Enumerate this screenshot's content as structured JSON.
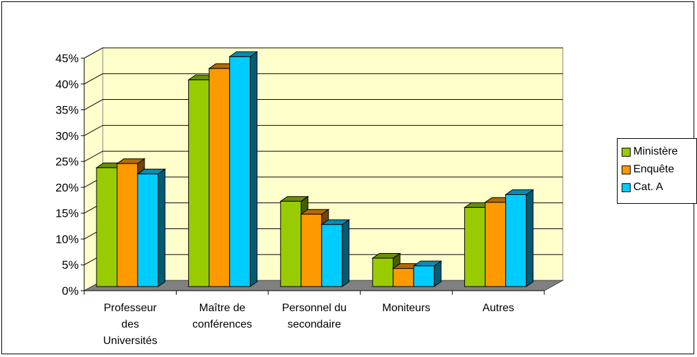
{
  "chart_data": {
    "type": "bar",
    "categories": [
      "Professeur des Universités",
      "Maître de conférences",
      "Personnel du secondaire",
      "Moniteurs",
      "Autres"
    ],
    "category_lines": [
      [
        "Professeur",
        "des",
        "Universités"
      ],
      [
        "Maître de",
        "conférences"
      ],
      [
        "Personnel du",
        "secondaire"
      ],
      [
        "Moniteurs"
      ],
      [
        "Autres"
      ]
    ],
    "series": [
      {
        "name": "Ministère",
        "values": [
          23,
          40,
          16.5,
          5.5,
          15.3
        ],
        "color": "#99cc00"
      },
      {
        "name": "Enquête",
        "values": [
          23.8,
          42.2,
          14,
          3.5,
          16.3
        ],
        "color": "#ff9900"
      },
      {
        "name": "Cat. A",
        "values": [
          21.8,
          44.5,
          12,
          4,
          17.8
        ],
        "color": "#00ccff"
      }
    ],
    "yticks": [
      "0%",
      "5%",
      "10%",
      "15%",
      "20%",
      "25%",
      "30%",
      "35%",
      "40%",
      "45%"
    ],
    "ylim": [
      0,
      45
    ],
    "title": "",
    "xlabel": "",
    "ylabel": "",
    "grid": true,
    "legend_position": "right",
    "style": "3d-clustered-column",
    "colors": {
      "wall": "#ffffcc",
      "floor": "#808080",
      "gridline": "#000000"
    }
  }
}
